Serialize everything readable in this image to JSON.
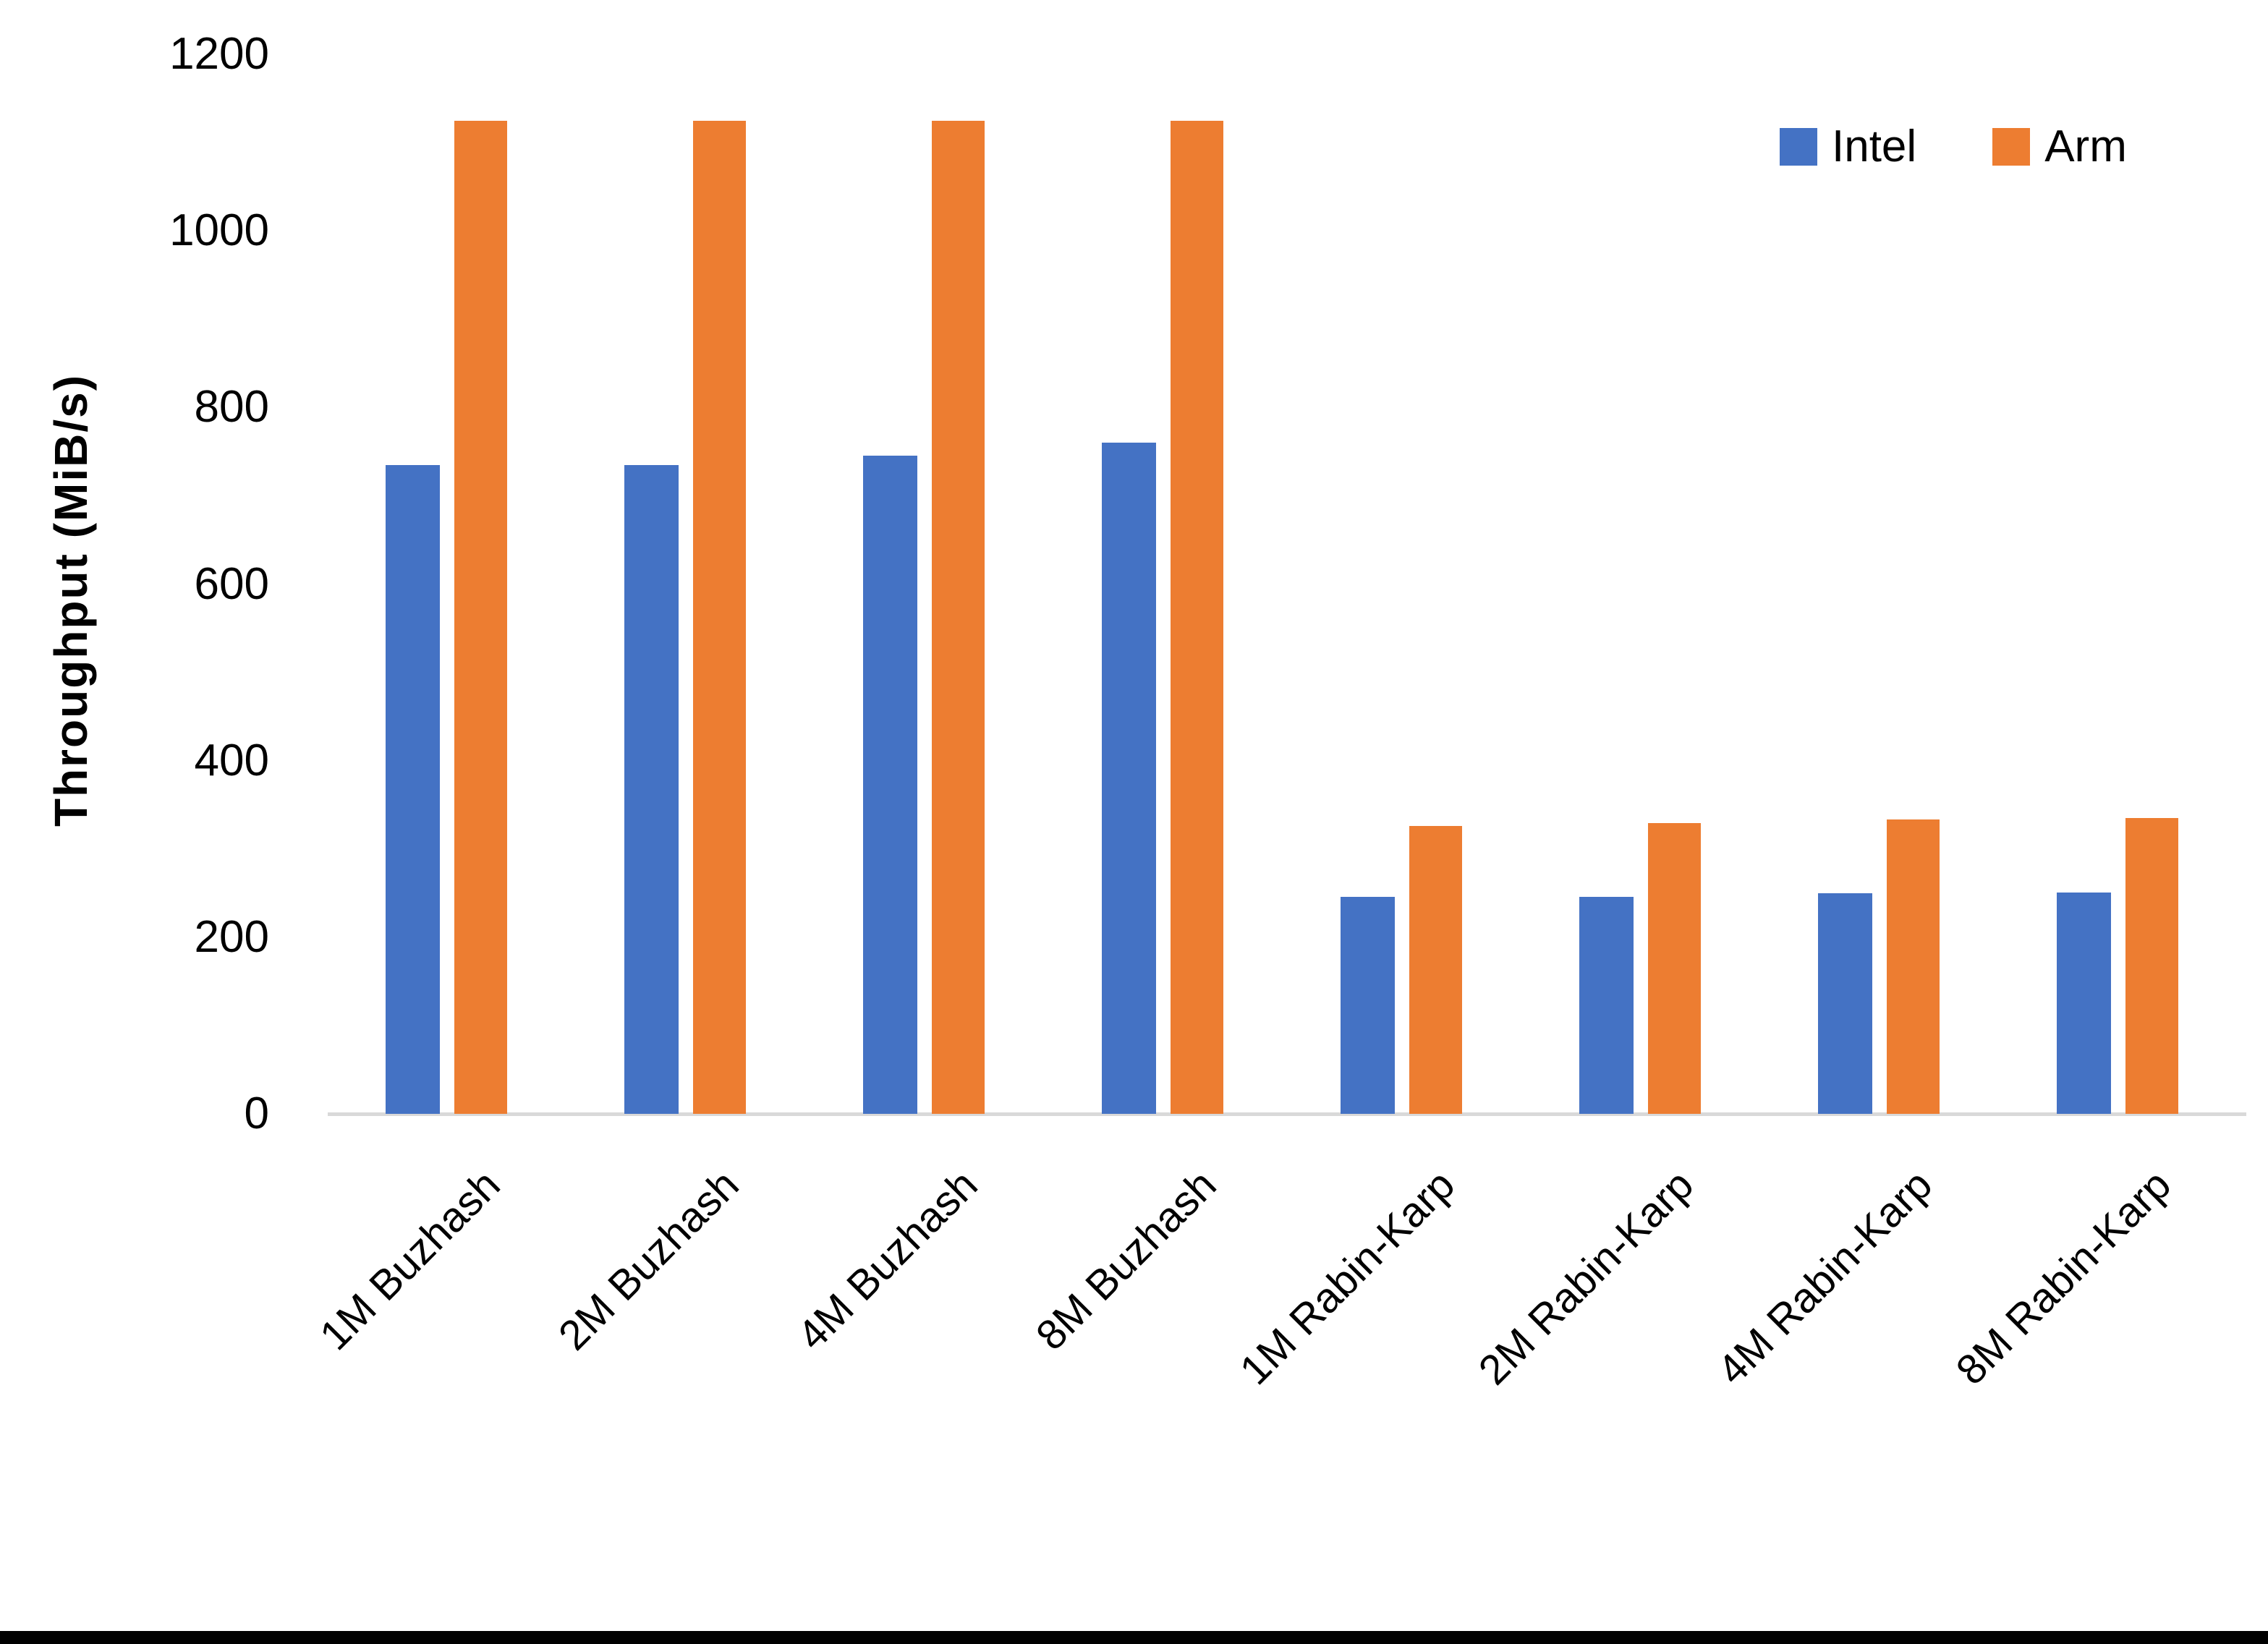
{
  "chart_data": {
    "type": "bar",
    "title": "",
    "xlabel": "",
    "ylabel": "Throughput (MiB/s)",
    "categories": [
      "1M Buzhash",
      "2M Buzhash",
      "4M Buzhash",
      "8M Buzhash",
      "1M Rabin-Karp",
      "2M Rabin-Karp",
      "4M Rabin-Karp",
      "8M Rabin-Karp"
    ],
    "series": [
      {
        "name": "Intel",
        "color": "#4472C4",
        "values": [
          735,
          735,
          745,
          760,
          246,
          246,
          250,
          251
        ]
      },
      {
        "name": "Arm",
        "color": "#ED7D31",
        "values": [
          1125,
          1125,
          1125,
          1125,
          326,
          329,
          333,
          335
        ]
      }
    ],
    "ylim": [
      0,
      1200
    ],
    "yticks": [
      0,
      200,
      400,
      600,
      800,
      1000,
      1200
    ],
    "legend_position": "top-right",
    "grid": false,
    "x_label_rotation_deg": 45
  },
  "colors": {
    "background": "#FFFFFF",
    "text": "#000000",
    "axis_line": "#D9D9D9",
    "bottom_bar": "#000000"
  }
}
